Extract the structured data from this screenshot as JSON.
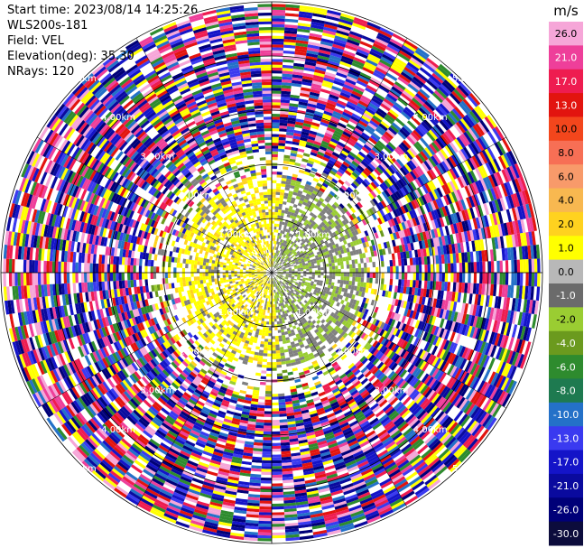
{
  "header": {
    "start_time": "Start time: 2023/08/14 14:25:26",
    "instrument": "WLS200s-181",
    "field": "Field: VEL",
    "elevation": "Elevation(deg): 35.30",
    "nrays": "NRays: 120"
  },
  "chart_data": {
    "type": "heatmap",
    "projection": "polar-ppi",
    "field": "VEL",
    "units": "m/s",
    "nrays": 120,
    "elevation_deg": 35.3,
    "range_ring_labels": [
      "1.00km",
      "2.00km",
      "3.00km",
      "4.00km",
      "5.00km"
    ],
    "colorbar": {
      "unit_label": "m/s",
      "ticks": [
        "26.0",
        "21.0",
        "17.0",
        "13.0",
        "10.0",
        "8.0",
        "6.0",
        "4.0",
        "2.0",
        "1.0",
        "0.0",
        "-1.0",
        "-2.0",
        "-4.0",
        "-6.0",
        "-8.0",
        "-10.0",
        "-13.0",
        "-17.0",
        "-21.0",
        "-26.0",
        "-30.0"
      ],
      "colors": [
        "#f6a6d8",
        "#ee3f9a",
        "#ee1c50",
        "#e2140f",
        "#f3461c",
        "#f76f55",
        "#f89a6a",
        "#f8b850",
        "#ffd21f",
        "#ffff00",
        "#b8b8b8",
        "#6b6b6b",
        "#9acd32",
        "#6b9a1e",
        "#2e8b2e",
        "#1e7a50",
        "#2471c8",
        "#3a3af0",
        "#1414c8",
        "#0a0a9e",
        "#000078",
        "#0c0c3c"
      ]
    },
    "notes_regions": {
      "inner_gate_colors": [
        "#ffff00",
        "#ffd21f",
        "#9acd32",
        "#808080",
        "#6b9a1e"
      ],
      "outer_gate_colors": [
        "#ee1c50",
        "#ee3f9a",
        "#f6a6d8",
        "#0a0a9e",
        "#1414c8",
        "#3a3af0",
        "#ffff00",
        "#2471c8",
        "#e2140f",
        "#2e8b2e",
        "#000078",
        "#ffffff"
      ]
    }
  }
}
